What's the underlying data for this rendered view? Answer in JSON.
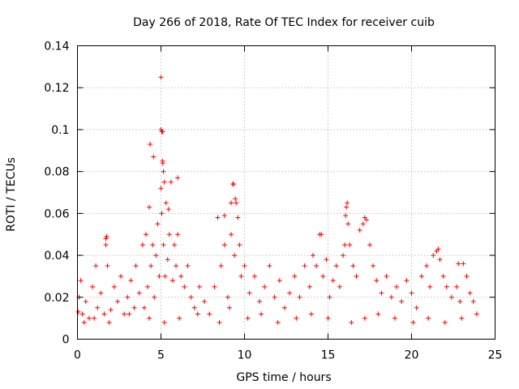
{
  "chart_data": {
    "type": "scatter",
    "title": "Day 266 of 2018, Rate Of TEC Index for receiver cuib",
    "xlabel": "GPS time / hours",
    "ylabel": "ROTI / TECUs",
    "xlim": [
      0,
      25
    ],
    "ylim": [
      0,
      0.14
    ],
    "xticks": [
      0,
      5,
      10,
      15,
      20,
      25
    ],
    "yticks": [
      0,
      0.02,
      0.04,
      0.06,
      0.08,
      0.1,
      0.12,
      0.14
    ],
    "xtick_labels": [
      "0",
      "5",
      "10",
      "15",
      "20",
      "25"
    ],
    "ytick_labels": [
      "0",
      "0.02",
      "0.04",
      "0.06",
      "0.08",
      "0.1",
      "0.12",
      "0.14"
    ],
    "grid": true,
    "marker": "plus",
    "color": "#ff0000",
    "series": [
      {
        "name": "ROTI",
        "x": [
          0.05,
          0.1,
          0.2,
          0.3,
          0.5,
          0.7,
          0.9,
          1.1,
          1.2,
          1.4,
          1.6,
          1.7,
          1.8,
          2.0,
          2.2,
          2.4,
          2.6,
          2.8,
          3.0,
          3.2,
          3.4,
          3.5,
          3.7,
          3.9,
          4.0,
          4.1,
          4.2,
          4.3,
          4.4,
          4.5,
          4.6,
          4.7,
          4.8,
          4.9,
          5.0,
          5.05,
          5.1,
          5.15,
          5.2,
          5.25,
          5.3,
          5.4,
          5.5,
          5.6,
          5.7,
          5.8,
          5.9,
          6.0,
          6.2,
          6.4,
          6.6,
          6.8,
          7.0,
          7.3,
          7.6,
          7.9,
          8.2,
          8.4,
          8.6,
          8.8,
          9.0,
          9.2,
          9.3,
          9.4,
          9.5,
          9.6,
          9.7,
          9.8,
          10.0,
          10.3,
          10.6,
          10.9,
          11.2,
          11.5,
          11.8,
          12.1,
          12.4,
          12.7,
          13.0,
          13.3,
          13.6,
          13.9,
          14.1,
          14.3,
          14.5,
          14.7,
          14.9,
          15.1,
          15.3,
          15.5,
          15.7,
          15.9,
          16.0,
          16.1,
          16.2,
          16.3,
          16.5,
          16.7,
          16.9,
          17.1,
          17.3,
          17.5,
          17.7,
          17.9,
          18.2,
          18.5,
          18.8,
          19.1,
          19.4,
          19.7,
          20.0,
          20.3,
          20.6,
          20.9,
          21.1,
          21.3,
          21.5,
          21.7,
          21.9,
          22.1,
          22.4,
          22.7,
          22.9,
          23.1,
          23.3,
          23.5,
          23.7,
          23.9,
          0.4,
          1.0,
          1.9,
          3.1,
          4.3,
          5.2,
          6.1,
          7.2,
          8.5,
          9.1,
          10.2,
          11.0,
          12.0,
          13.1,
          14.0,
          15.0,
          16.4,
          17.2,
          18.0,
          19.0,
          20.1,
          21.0,
          22.0,
          23.0,
          4.35,
          4.55,
          5.0,
          5.1,
          5.15,
          5.45,
          6.0,
          9.2,
          9.35,
          9.45,
          16.05,
          16.15,
          17.2,
          8.8,
          14.6,
          1.7,
          1.75,
          5.0,
          5.05,
          5.1,
          21.6,
          22.8
        ],
        "y": [
          0.013,
          0.02,
          0.028,
          0.012,
          0.018,
          0.01,
          0.025,
          0.035,
          0.015,
          0.022,
          0.012,
          0.045,
          0.035,
          0.014,
          0.025,
          0.018,
          0.03,
          0.012,
          0.02,
          0.028,
          0.015,
          0.035,
          0.022,
          0.045,
          0.015,
          0.05,
          0.025,
          0.063,
          0.035,
          0.045,
          0.02,
          0.04,
          0.055,
          0.03,
          0.072,
          0.06,
          0.084,
          0.045,
          0.075,
          0.03,
          0.065,
          0.038,
          0.05,
          0.075,
          0.028,
          0.045,
          0.035,
          0.05,
          0.03,
          0.025,
          0.035,
          0.02,
          0.015,
          0.025,
          0.018,
          0.012,
          0.025,
          0.058,
          0.035,
          0.045,
          0.02,
          0.05,
          0.074,
          0.04,
          0.065,
          0.058,
          0.045,
          0.03,
          0.035,
          0.022,
          0.03,
          0.018,
          0.025,
          0.035,
          0.02,
          0.028,
          0.015,
          0.022,
          0.03,
          0.02,
          0.035,
          0.025,
          0.04,
          0.035,
          0.05,
          0.03,
          0.038,
          0.02,
          0.028,
          0.035,
          0.025,
          0.04,
          0.045,
          0.063,
          0.055,
          0.045,
          0.035,
          0.03,
          0.052,
          0.055,
          0.057,
          0.045,
          0.035,
          0.028,
          0.022,
          0.03,
          0.02,
          0.025,
          0.018,
          0.028,
          0.022,
          0.015,
          0.03,
          0.035,
          0.025,
          0.04,
          0.042,
          0.038,
          0.03,
          0.025,
          0.02,
          0.025,
          0.018,
          0.036,
          0.03,
          0.022,
          0.018,
          0.012,
          0.008,
          0.01,
          0.008,
          0.012,
          0.01,
          0.008,
          0.01,
          0.012,
          0.008,
          0.015,
          0.01,
          0.012,
          0.008,
          0.01,
          0.012,
          0.01,
          0.008,
          0.01,
          0.012,
          0.01,
          0.008,
          0.01,
          0.008,
          0.01,
          0.093,
          0.087,
          0.125,
          0.099,
          0.08,
          0.062,
          0.077,
          0.065,
          0.074,
          0.067,
          0.059,
          0.065,
          0.058,
          0.059,
          0.05,
          0.048,
          0.049,
          0.1,
          0.099,
          0.085,
          0.043,
          0.036
        ]
      }
    ]
  }
}
